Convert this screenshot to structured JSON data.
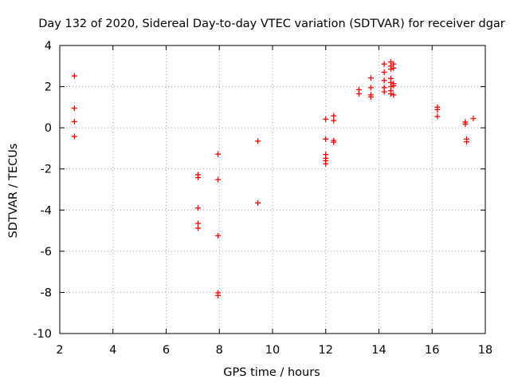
{
  "chart_data": {
    "type": "scatter",
    "title": "Day 132 of 2020, Sidereal Day-to-day VTEC variation (SDTVAR) for receiver dgar",
    "xlabel": "GPS time / hours",
    "ylabel": "SDTVAR / TECUs",
    "xlim": [
      2,
      18
    ],
    "ylim": [
      -10,
      4
    ],
    "x_ticks": [
      2,
      4,
      6,
      8,
      10,
      12,
      14,
      16,
      18
    ],
    "y_ticks": [
      -10,
      -8,
      -6,
      -4,
      -2,
      0,
      2,
      4
    ],
    "x_tick_labels": [
      "2",
      "4",
      "6",
      "8",
      "10",
      "12",
      "14",
      "16",
      "18"
    ],
    "y_tick_labels": [
      "-10",
      "-8",
      "-6",
      "-4",
      "-2",
      "0",
      "2",
      "4"
    ],
    "grid": true,
    "marker": "+",
    "series": [
      {
        "name": "SDTVAR",
        "color": "#ff0000",
        "points": [
          [
            2.55,
            2.52
          ],
          [
            2.55,
            0.95
          ],
          [
            2.55,
            0.3
          ],
          [
            2.55,
            -0.42
          ],
          [
            7.2,
            -2.28
          ],
          [
            7.2,
            -2.42
          ],
          [
            7.2,
            -3.9
          ],
          [
            7.2,
            -4.65
          ],
          [
            7.2,
            -4.88
          ],
          [
            7.95,
            -1.28
          ],
          [
            7.95,
            -2.52
          ],
          [
            7.95,
            -5.25
          ],
          [
            7.95,
            -8.02
          ],
          [
            7.95,
            -8.15
          ],
          [
            9.45,
            -0.65
          ],
          [
            9.45,
            -3.65
          ],
          [
            12.0,
            0.42
          ],
          [
            12.0,
            -0.55
          ],
          [
            12.0,
            -1.3
          ],
          [
            12.0,
            -1.48
          ],
          [
            12.0,
            -1.6
          ],
          [
            12.0,
            -1.75
          ],
          [
            12.3,
            0.58
          ],
          [
            12.3,
            0.35
          ],
          [
            12.3,
            -0.62
          ],
          [
            12.3,
            -0.7
          ],
          [
            13.25,
            1.85
          ],
          [
            13.25,
            1.65
          ],
          [
            13.7,
            2.42
          ],
          [
            13.7,
            1.95
          ],
          [
            13.7,
            1.6
          ],
          [
            13.7,
            1.5
          ],
          [
            14.2,
            3.1
          ],
          [
            14.2,
            2.7
          ],
          [
            14.2,
            2.3
          ],
          [
            14.2,
            1.95
          ],
          [
            14.2,
            1.75
          ],
          [
            14.45,
            3.2
          ],
          [
            14.45,
            3.0
          ],
          [
            14.45,
            2.85
          ],
          [
            14.45,
            2.4
          ],
          [
            14.45,
            2.2
          ],
          [
            14.45,
            2.0
          ],
          [
            14.45,
            1.8
          ],
          [
            14.45,
            1.65
          ],
          [
            14.55,
            3.1
          ],
          [
            14.55,
            2.9
          ],
          [
            14.55,
            2.15
          ],
          [
            14.55,
            2.05
          ],
          [
            14.55,
            1.6
          ],
          [
            16.2,
            1.0
          ],
          [
            16.2,
            0.88
          ],
          [
            16.2,
            0.55
          ],
          [
            17.25,
            0.28
          ],
          [
            17.25,
            0.18
          ],
          [
            17.3,
            -0.55
          ],
          [
            17.3,
            -0.68
          ],
          [
            17.55,
            0.45
          ]
        ]
      }
    ]
  }
}
